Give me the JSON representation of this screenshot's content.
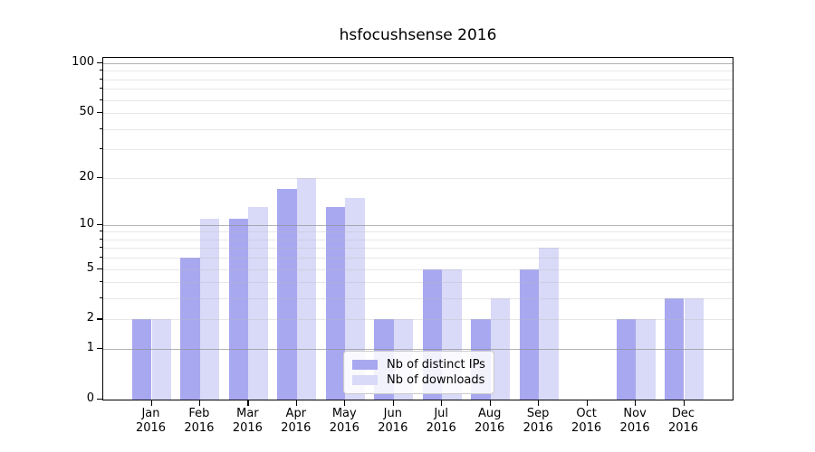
{
  "title": "hsfocushsense 2016",
  "colors": {
    "distinct_ips_bar": "#a8a8f0",
    "downloads_bar": "#d9d9f8",
    "major_grid": "#8c8c8c",
    "minor_grid": "#b9b9b9",
    "axis": "#000000",
    "legend_border": "#cccccc",
    "background": "#ffffff"
  },
  "legend": {
    "items": [
      {
        "label": "Nb of distinct IPs",
        "color": "#a8a8f0"
      },
      {
        "label": "Nb of downloads",
        "color": "#d9d9f8"
      }
    ]
  },
  "chart_data": {
    "type": "bar",
    "title": "hsfocushsense 2016",
    "categories": [
      "Jan",
      "Feb",
      "Mar",
      "Apr",
      "May",
      "Jun",
      "Jul",
      "Aug",
      "Sep",
      "Oct",
      "Nov",
      "Dec"
    ],
    "category_year": "2016",
    "series": [
      {
        "name": "Nb of distinct IPs",
        "color": "#a8a8f0",
        "values": [
          2,
          6,
          11,
          17,
          13,
          2,
          5,
          2,
          5,
          0,
          2,
          3
        ]
      },
      {
        "name": "Nb of downloads",
        "color": "#d9d9f8",
        "values": [
          2,
          11,
          13,
          20,
          15,
          2,
          5,
          3,
          7,
          0,
          2,
          3
        ]
      }
    ],
    "xlabel": "",
    "ylabel": "",
    "y_axis": {
      "scale": "log(value+1)",
      "tick_values": [
        0,
        1,
        2,
        5,
        10,
        20,
        50,
        100
      ],
      "tick_labels": [
        "0",
        "1",
        "2",
        "5",
        "10",
        "20",
        "50",
        "100"
      ],
      "major_gridline_values": [
        1,
        10,
        100
      ],
      "minor_gridline_values": [
        2,
        3,
        4,
        5,
        6,
        7,
        8,
        9,
        20,
        30,
        40,
        50,
        60,
        70,
        80,
        90
      ],
      "ylim": [
        0,
        109
      ]
    },
    "grid": true,
    "legend_position": "lower center"
  }
}
